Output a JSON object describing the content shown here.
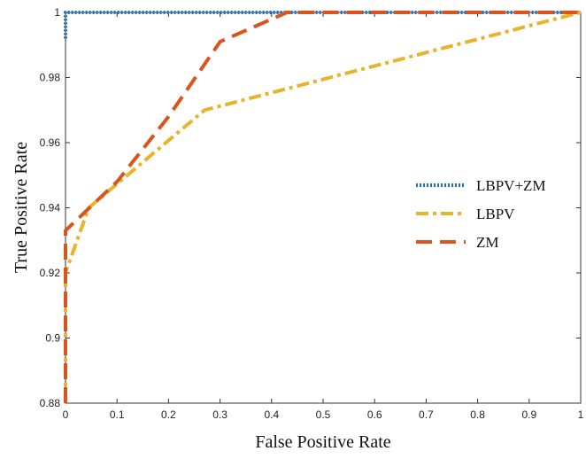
{
  "chart_data": {
    "type": "line",
    "xlabel": "False Positive Rate",
    "ylabel": "True Positive Rate",
    "xlim": [
      0,
      1
    ],
    "ylim": [
      0.88,
      1
    ],
    "x_ticks": [
      "0",
      "0.1",
      "0.2",
      "0.3",
      "0.4",
      "0.5",
      "0.6",
      "0.7",
      "0.8",
      "0.9",
      "1"
    ],
    "y_ticks": [
      "0.88",
      "0.9",
      "0.92",
      "0.94",
      "0.96",
      "0.98",
      "1"
    ],
    "grid": false,
    "legend_position": "right",
    "series": [
      {
        "name": "LBPV+ZM",
        "color": "#1f6fb4",
        "style": "dotted",
        "x": [
          0,
          0,
          1
        ],
        "y": [
          0.992,
          1,
          1
        ]
      },
      {
        "name": "LBPV",
        "color": "#eab32c",
        "style": "dash-dot",
        "x": [
          0,
          0,
          0.045,
          0.27,
          1
        ],
        "y": [
          0.88,
          0.92,
          0.94,
          0.97,
          1
        ]
      },
      {
        "name": "ZM",
        "color": "#d9541e",
        "style": "dashed",
        "x": [
          0,
          0,
          0.1,
          0.2,
          0.3,
          0.43,
          1
        ],
        "y": [
          0.88,
          0.933,
          0.948,
          0.968,
          0.991,
          1,
          1
        ]
      }
    ]
  }
}
